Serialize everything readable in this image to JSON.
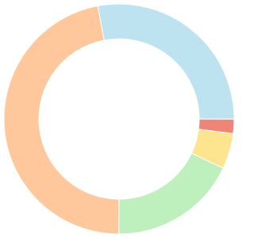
{
  "chart_data": {
    "type": "doughnut",
    "categories": [
      null,
      null,
      null,
      null,
      null
    ],
    "values": [
      28,
      2,
      5,
      18,
      47
    ],
    "colors": [
      "#bee3f0",
      "#ee8577",
      "#fde48f",
      "#bdf0bd",
      "#fec89c"
    ]
  }
}
